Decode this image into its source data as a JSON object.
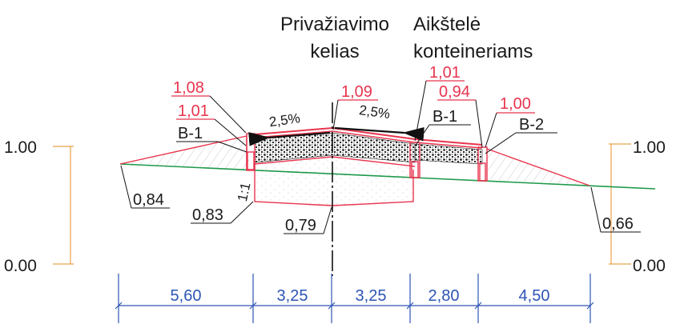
{
  "titles": {
    "road_line1": "Privažiavimo",
    "road_line2": "kelias",
    "pad_line1": "Aikštelė",
    "pad_line2": "konteineriams"
  },
  "scale": {
    "left_top": "1.00",
    "left_bottom": "0.00",
    "right_top": "1.00",
    "right_bottom": "0.00"
  },
  "elevations_red": {
    "left_upper": "1,08",
    "left_lower": "1,01",
    "center": "1,09",
    "pad_upper": "1,01",
    "pad_lower": "0,94",
    "right": "1,00"
  },
  "elevations_black": {
    "left_slope_toe": "0,84",
    "left_base": "0,83",
    "center_base": "0,79",
    "right_slope_toe": "0,66"
  },
  "curb_labels": {
    "left": "B-1",
    "pad_left": "B-1",
    "pad_right": "B-2"
  },
  "slopes": {
    "left": "2,5%",
    "right": "2,5%",
    "embankment": "1:1"
  },
  "dimensions": [
    "5,60",
    "3,25",
    "3,25",
    "2,80",
    "4,50"
  ],
  "colors": {
    "structure": "#e8344e",
    "ground": "#1e9a4a",
    "dimension": "#2d55b4",
    "scale": "#e8a24a"
  }
}
